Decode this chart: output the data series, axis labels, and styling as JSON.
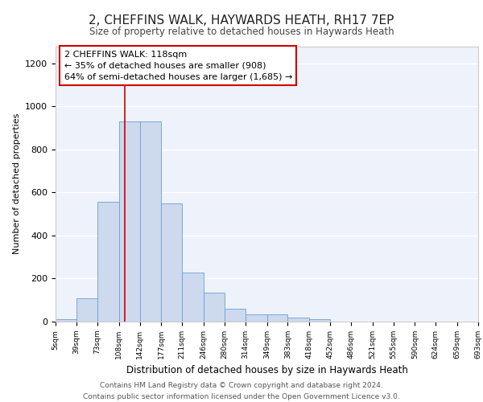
{
  "title": "2, CHEFFINS WALK, HAYWARDS HEATH, RH17 7EP",
  "subtitle": "Size of property relative to detached houses in Haywards Heath",
  "xlabel": "Distribution of detached houses by size in Haywards Heath",
  "ylabel": "Number of detached properties",
  "bar_color": "#cdd9ed",
  "bar_edge_color": "#6b9fd4",
  "background_color": "#eef2fa",
  "grid_color": "#ffffff",
  "vline_color": "#cc0000",
  "vline_x": 118,
  "annotation_line1": "2 CHEFFINS WALK: 118sqm",
  "annotation_line2": "← 35% of detached houses are smaller (908)",
  "annotation_line3": "64% of semi-detached houses are larger (1,685) →",
  "annotation_box_color": "#ffffff",
  "annotation_box_edge": "#cc0000",
  "footer_text": "Contains HM Land Registry data © Crown copyright and database right 2024.\nContains public sector information licensed under the Open Government Licence v3.0.",
  "bin_edges": [
    5,
    39,
    73,
    108,
    142,
    177,
    211,
    246,
    280,
    314,
    349,
    383,
    418,
    452,
    486,
    521,
    555,
    590,
    624,
    659,
    693
  ],
  "bin_labels": [
    "5sqm",
    "39sqm",
    "73sqm",
    "108sqm",
    "142sqm",
    "177sqm",
    "211sqm",
    "246sqm",
    "280sqm",
    "314sqm",
    "349sqm",
    "383sqm",
    "418sqm",
    "452sqm",
    "486sqm",
    "521sqm",
    "555sqm",
    "590sqm",
    "624sqm",
    "659sqm",
    "693sqm"
  ],
  "bar_heights": [
    12,
    110,
    555,
    930,
    930,
    550,
    228,
    135,
    60,
    35,
    35,
    20,
    10,
    0,
    0,
    0,
    0,
    0,
    0,
    0
  ],
  "ylim": [
    0,
    1280
  ],
  "yticks": [
    0,
    200,
    400,
    600,
    800,
    1000,
    1200
  ]
}
